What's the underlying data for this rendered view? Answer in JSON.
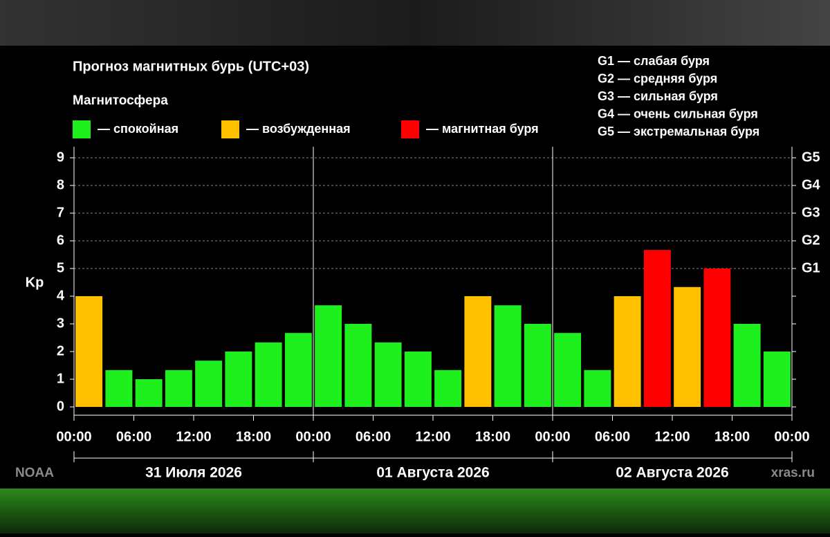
{
  "chart_data": {
    "type": "bar",
    "title": "Прогноз магнитных бурь (UTC+03)",
    "legend_title": "Магнитосфера",
    "y_label": "Kp",
    "source_left": "NOAA",
    "source_right": "xras.ru",
    "storm_scale": [
      "G1 — слабая буря",
      "G2 — средняя буря",
      "G3 — сильная буря",
      "G4 — очень сильная буря",
      "G5 — экстремальная буря"
    ],
    "days": [
      "31 Июля 2026",
      "01 Августа 2026",
      "02 Августа 2026"
    ],
    "xlim": [
      0,
      72
    ],
    "xticks": [
      {
        "value": 0,
        "label": "00:00"
      },
      {
        "value": 6,
        "label": "06:00"
      },
      {
        "value": 12,
        "label": "12:00"
      },
      {
        "value": 18,
        "label": "18:00"
      },
      {
        "value": 24,
        "label": "00:00"
      },
      {
        "value": 30,
        "label": "06:00"
      },
      {
        "value": 36,
        "label": "12:00"
      },
      {
        "value": 42,
        "label": "18:00"
      },
      {
        "value": 48,
        "label": "00:00"
      },
      {
        "value": 54,
        "label": "06:00"
      },
      {
        "value": 60,
        "label": "12:00"
      },
      {
        "value": 66,
        "label": "18:00"
      },
      {
        "value": 72,
        "label": "00:00"
      }
    ],
    "ylim": [
      -0.3,
      9.4
    ],
    "yticks": [
      0,
      1,
      2,
      3,
      4,
      5,
      6,
      7,
      8,
      9
    ],
    "y2lim": [
      -0.3,
      9.4
    ],
    "y2ticks": [
      {
        "value": 5,
        "label": "G1"
      },
      {
        "value": 6,
        "label": "G2"
      },
      {
        "value": 7,
        "label": "G3"
      },
      {
        "value": 8,
        "label": "G4"
      },
      {
        "value": 9,
        "label": "G5"
      }
    ],
    "grid": true,
    "series": [
      {
        "name": "— спокойная",
        "color": "#1ef01e",
        "values": [
          null,
          1.33,
          1,
          1.33,
          1.67,
          2,
          2.33,
          2.67,
          3.67,
          3,
          2.33,
          2,
          1.33,
          null,
          3.67,
          3,
          2.67,
          1.33,
          null,
          null,
          null,
          null,
          3,
          2
        ]
      },
      {
        "name": "— возбужденная",
        "color": "#ffc000",
        "values": [
          4,
          null,
          null,
          null,
          null,
          null,
          null,
          null,
          null,
          null,
          null,
          null,
          null,
          4,
          null,
          null,
          null,
          null,
          4,
          null,
          4.33,
          null,
          null,
          null
        ]
      },
      {
        "name": "— магнитная буря",
        "color": "#ff0000",
        "values": [
          null,
          null,
          null,
          null,
          null,
          null,
          null,
          null,
          null,
          null,
          null,
          null,
          null,
          null,
          null,
          null,
          null,
          null,
          null,
          5.67,
          null,
          5,
          null,
          null
        ]
      }
    ]
  }
}
